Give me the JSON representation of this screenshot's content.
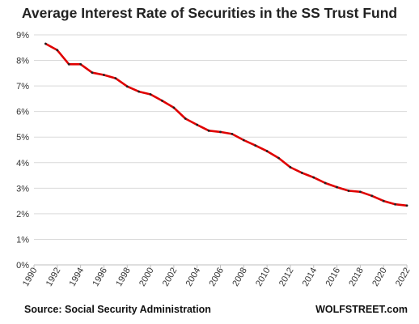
{
  "chart_data": {
    "type": "line",
    "title": "Average Interest Rate of Securities in the SS Trust Fund",
    "xlabel": "",
    "ylabel": "",
    "xlim": [
      1990,
      2022
    ],
    "ylim": [
      0,
      9
    ],
    "y_ticks": [
      0,
      1,
      2,
      3,
      4,
      5,
      6,
      7,
      8,
      9
    ],
    "y_tick_labels": [
      "0%",
      "1%",
      "2%",
      "3%",
      "4%",
      "5%",
      "6%",
      "7%",
      "8%",
      "9%"
    ],
    "x_ticks": [
      1990,
      1992,
      1994,
      1996,
      1998,
      2000,
      2002,
      2004,
      2006,
      2008,
      2010,
      2012,
      2014,
      2016,
      2018,
      2020,
      2022
    ],
    "x_tick_labels": [
      "1990",
      "1992",
      "1994",
      "1996",
      "1998",
      "2000",
      "2002",
      "2004",
      "2006",
      "2008",
      "2010",
      "2012",
      "2014",
      "2016",
      "2018",
      "2020",
      "2022"
    ],
    "grid": true,
    "line_color": "#e00000",
    "marker_color": "#222222",
    "series": [
      {
        "x": [
          1991,
          1992,
          1993,
          1994,
          1995,
          1996,
          1997,
          1998,
          1999,
          2000,
          2001,
          2002,
          2003,
          2004,
          2005,
          2006,
          2007,
          2008,
          2009,
          2010,
          2011,
          2012,
          2013,
          2014,
          2015,
          2016,
          2017,
          2018,
          2019,
          2020,
          2021,
          2022
        ],
        "values": [
          8.65,
          8.4,
          7.85,
          7.85,
          7.52,
          7.43,
          7.3,
          6.98,
          6.78,
          6.67,
          6.42,
          6.15,
          5.72,
          5.48,
          5.25,
          5.2,
          5.12,
          4.88,
          4.67,
          4.45,
          4.18,
          3.82,
          3.6,
          3.42,
          3.2,
          3.04,
          2.9,
          2.86,
          2.7,
          2.5,
          2.37,
          2.32
        ]
      }
    ]
  },
  "footer": {
    "source": "Source: Social Security Administration",
    "brand": "WOLFSTREET.com"
  }
}
